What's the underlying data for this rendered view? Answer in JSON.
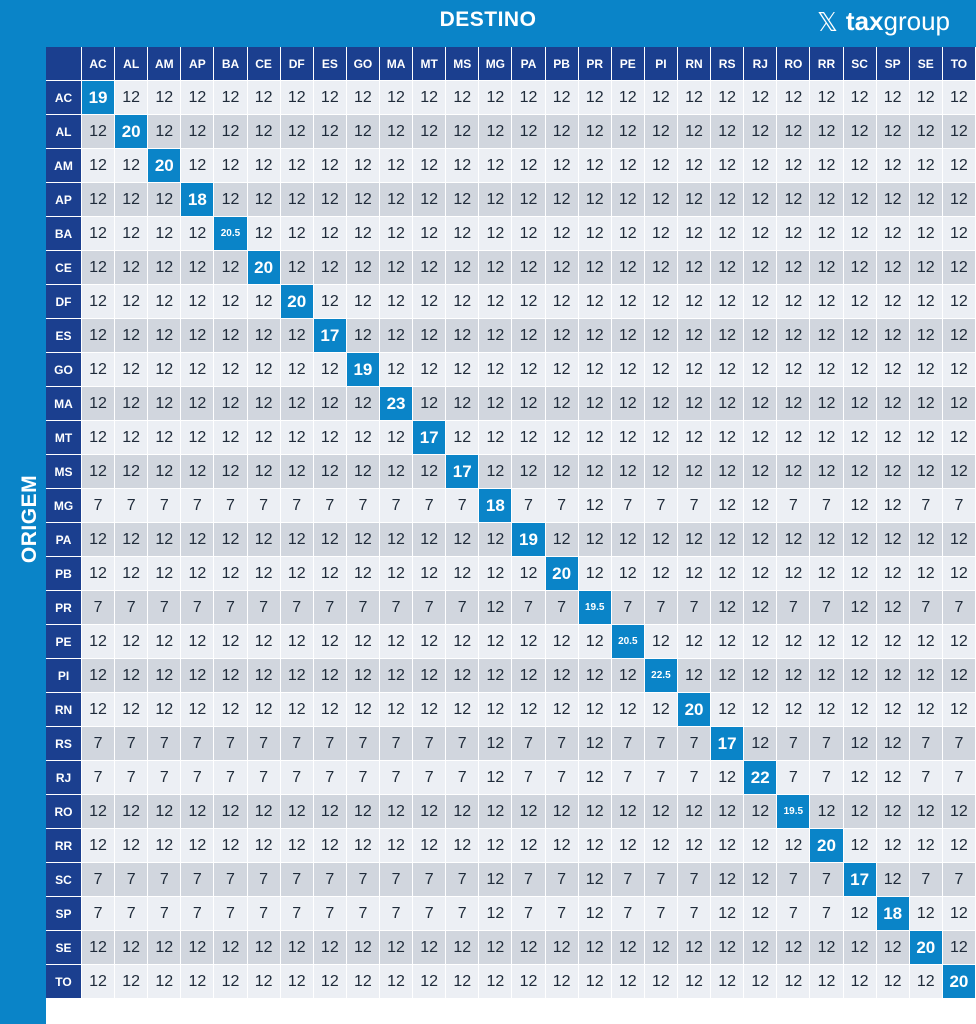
{
  "header": {
    "title": "DESTINO",
    "side_title": "ORIGEM",
    "logo_mark": "𝕏",
    "logo_bold": "tax",
    "logo_light": "group"
  },
  "chart_data": {
    "type": "heatmap",
    "title": "DESTINO",
    "xlabel": "DESTINO",
    "ylabel": "ORIGEM",
    "columns": [
      "AC",
      "AL",
      "AM",
      "AP",
      "BA",
      "CE",
      "DF",
      "ES",
      "GO",
      "MA",
      "MT",
      "MS",
      "MG",
      "PA",
      "PB",
      "PR",
      "PE",
      "PI",
      "RN",
      "RS",
      "RJ",
      "RO",
      "RR",
      "SC",
      "SP",
      "SE",
      "TO"
    ],
    "rows": [
      "AC",
      "AL",
      "AM",
      "AP",
      "BA",
      "CE",
      "DF",
      "ES",
      "GO",
      "MA",
      "MT",
      "MS",
      "MG",
      "PA",
      "PB",
      "PR",
      "PE",
      "PI",
      "RN",
      "RS",
      "RJ",
      "RO",
      "RR",
      "SC",
      "SP",
      "SE",
      "TO"
    ],
    "values": [
      [
        19,
        12,
        12,
        12,
        12,
        12,
        12,
        12,
        12,
        12,
        12,
        12,
        12,
        12,
        12,
        12,
        12,
        12,
        12,
        12,
        12,
        12,
        12,
        12,
        12,
        12,
        12
      ],
      [
        12,
        20,
        12,
        12,
        12,
        12,
        12,
        12,
        12,
        12,
        12,
        12,
        12,
        12,
        12,
        12,
        12,
        12,
        12,
        12,
        12,
        12,
        12,
        12,
        12,
        12,
        12
      ],
      [
        12,
        12,
        20,
        12,
        12,
        12,
        12,
        12,
        12,
        12,
        12,
        12,
        12,
        12,
        12,
        12,
        12,
        12,
        12,
        12,
        12,
        12,
        12,
        12,
        12,
        12,
        12
      ],
      [
        12,
        12,
        12,
        18,
        12,
        12,
        12,
        12,
        12,
        12,
        12,
        12,
        12,
        12,
        12,
        12,
        12,
        12,
        12,
        12,
        12,
        12,
        12,
        12,
        12,
        12,
        12
      ],
      [
        12,
        12,
        12,
        12,
        20.5,
        12,
        12,
        12,
        12,
        12,
        12,
        12,
        12,
        12,
        12,
        12,
        12,
        12,
        12,
        12,
        12,
        12,
        12,
        12,
        12,
        12,
        12
      ],
      [
        12,
        12,
        12,
        12,
        12,
        20,
        12,
        12,
        12,
        12,
        12,
        12,
        12,
        12,
        12,
        12,
        12,
        12,
        12,
        12,
        12,
        12,
        12,
        12,
        12,
        12,
        12
      ],
      [
        12,
        12,
        12,
        12,
        12,
        12,
        20,
        12,
        12,
        12,
        12,
        12,
        12,
        12,
        12,
        12,
        12,
        12,
        12,
        12,
        12,
        12,
        12,
        12,
        12,
        12,
        12
      ],
      [
        12,
        12,
        12,
        12,
        12,
        12,
        12,
        17,
        12,
        12,
        12,
        12,
        12,
        12,
        12,
        12,
        12,
        12,
        12,
        12,
        12,
        12,
        12,
        12,
        12,
        12,
        12
      ],
      [
        12,
        12,
        12,
        12,
        12,
        12,
        12,
        12,
        19,
        12,
        12,
        12,
        12,
        12,
        12,
        12,
        12,
        12,
        12,
        12,
        12,
        12,
        12,
        12,
        12,
        12,
        12
      ],
      [
        12,
        12,
        12,
        12,
        12,
        12,
        12,
        12,
        12,
        23,
        12,
        12,
        12,
        12,
        12,
        12,
        12,
        12,
        12,
        12,
        12,
        12,
        12,
        12,
        12,
        12,
        12
      ],
      [
        12,
        12,
        12,
        12,
        12,
        12,
        12,
        12,
        12,
        12,
        17,
        12,
        12,
        12,
        12,
        12,
        12,
        12,
        12,
        12,
        12,
        12,
        12,
        12,
        12,
        12,
        12
      ],
      [
        12,
        12,
        12,
        12,
        12,
        12,
        12,
        12,
        12,
        12,
        12,
        17,
        12,
        12,
        12,
        12,
        12,
        12,
        12,
        12,
        12,
        12,
        12,
        12,
        12,
        12,
        12
      ],
      [
        7,
        7,
        7,
        7,
        7,
        7,
        7,
        7,
        7,
        7,
        7,
        7,
        18,
        7,
        7,
        12,
        7,
        7,
        7,
        12,
        12,
        7,
        7,
        12,
        12,
        7,
        7
      ],
      [
        12,
        12,
        12,
        12,
        12,
        12,
        12,
        12,
        12,
        12,
        12,
        12,
        12,
        19,
        12,
        12,
        12,
        12,
        12,
        12,
        12,
        12,
        12,
        12,
        12,
        12,
        12
      ],
      [
        12,
        12,
        12,
        12,
        12,
        12,
        12,
        12,
        12,
        12,
        12,
        12,
        12,
        12,
        20,
        12,
        12,
        12,
        12,
        12,
        12,
        12,
        12,
        12,
        12,
        12,
        12
      ],
      [
        7,
        7,
        7,
        7,
        7,
        7,
        7,
        7,
        7,
        7,
        7,
        7,
        12,
        7,
        7,
        19.5,
        7,
        7,
        7,
        12,
        12,
        7,
        7,
        12,
        12,
        7,
        7
      ],
      [
        12,
        12,
        12,
        12,
        12,
        12,
        12,
        12,
        12,
        12,
        12,
        12,
        12,
        12,
        12,
        12,
        20.5,
        12,
        12,
        12,
        12,
        12,
        12,
        12,
        12,
        12,
        12
      ],
      [
        12,
        12,
        12,
        12,
        12,
        12,
        12,
        12,
        12,
        12,
        12,
        12,
        12,
        12,
        12,
        12,
        12,
        22.5,
        12,
        12,
        12,
        12,
        12,
        12,
        12,
        12,
        12
      ],
      [
        12,
        12,
        12,
        12,
        12,
        12,
        12,
        12,
        12,
        12,
        12,
        12,
        12,
        12,
        12,
        12,
        12,
        12,
        20,
        12,
        12,
        12,
        12,
        12,
        12,
        12,
        12
      ],
      [
        7,
        7,
        7,
        7,
        7,
        7,
        7,
        7,
        7,
        7,
        7,
        7,
        12,
        7,
        7,
        12,
        7,
        7,
        7,
        17,
        12,
        7,
        7,
        12,
        12,
        7,
        7
      ],
      [
        7,
        7,
        7,
        7,
        7,
        7,
        7,
        7,
        7,
        7,
        7,
        7,
        12,
        7,
        7,
        12,
        7,
        7,
        7,
        12,
        22,
        7,
        7,
        12,
        12,
        7,
        7
      ],
      [
        12,
        12,
        12,
        12,
        12,
        12,
        12,
        12,
        12,
        12,
        12,
        12,
        12,
        12,
        12,
        12,
        12,
        12,
        12,
        12,
        12,
        19.5,
        12,
        12,
        12,
        12,
        12
      ],
      [
        12,
        12,
        12,
        12,
        12,
        12,
        12,
        12,
        12,
        12,
        12,
        12,
        12,
        12,
        12,
        12,
        12,
        12,
        12,
        12,
        12,
        12,
        20,
        12,
        12,
        12,
        12
      ],
      [
        7,
        7,
        7,
        7,
        7,
        7,
        7,
        7,
        7,
        7,
        7,
        7,
        12,
        7,
        7,
        12,
        7,
        7,
        7,
        12,
        12,
        7,
        7,
        17,
        12,
        7,
        7
      ],
      [
        7,
        7,
        7,
        7,
        7,
        7,
        7,
        7,
        7,
        7,
        7,
        7,
        12,
        7,
        7,
        12,
        7,
        7,
        7,
        12,
        12,
        7,
        7,
        12,
        18,
        12,
        12
      ],
      [
        12,
        12,
        12,
        12,
        12,
        12,
        12,
        12,
        12,
        12,
        12,
        12,
        12,
        12,
        12,
        12,
        12,
        12,
        12,
        12,
        12,
        12,
        12,
        12,
        12,
        20,
        12
      ],
      [
        12,
        12,
        12,
        12,
        12,
        12,
        12,
        12,
        12,
        12,
        12,
        12,
        12,
        12,
        12,
        12,
        12,
        12,
        12,
        12,
        12,
        12,
        12,
        12,
        12,
        12,
        20
      ]
    ],
    "colors": {
      "background": "#0a84c8",
      "header_cell": "#1b3f8f",
      "diagonal_cell": "#0a84c8",
      "row_light": "#eceff4",
      "row_dark": "#d1d6de"
    }
  }
}
